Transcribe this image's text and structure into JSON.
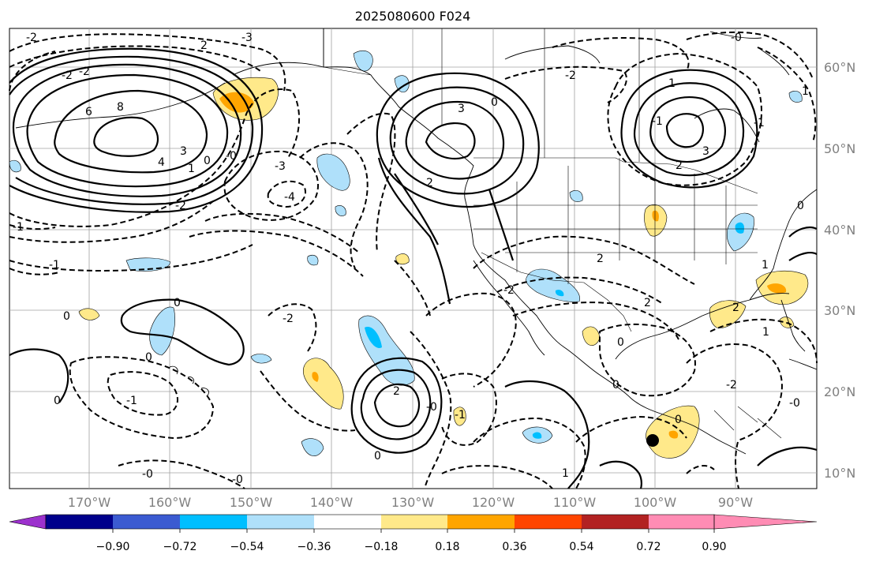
{
  "title": "2025080600 F024",
  "map": {
    "lat_labels": [
      "60°N",
      "50°N",
      "40°N",
      "30°N",
      "20°N",
      "10°N"
    ],
    "lon_labels": [
      "170°W",
      "160°W",
      "150°W",
      "140°W",
      "130°W",
      "120°W",
      "110°W",
      "100°W",
      "90°W"
    ]
  },
  "contour_labels": [
    "-2",
    "-3",
    "2",
    "-2",
    "-2",
    "-1",
    "-1",
    "0",
    "6",
    "8",
    "4",
    "3",
    "1",
    "0",
    "-0",
    "-3",
    "-4",
    "3",
    "0",
    "2",
    "-2",
    "-2",
    "1",
    "-1",
    "-1",
    "3",
    "2",
    "-0",
    "1",
    "2",
    "2",
    "-2",
    "0",
    "0",
    "0",
    "0",
    "-0",
    "-2",
    "-1",
    "-0",
    "-0",
    "0",
    "2",
    "-1",
    "0",
    "1",
    "-2",
    "0",
    "-0",
    "1",
    "2",
    "1",
    "0"
  ],
  "colorbar": {
    "colors": [
      "#9c31cd",
      "#00008b",
      "#3b5bd1",
      "#00bfff",
      "#afe0fa",
      "#ffffff",
      "#ffe98a",
      "#ffa500",
      "#ff4500",
      "#b22222",
      "#ff8cb4"
    ],
    "tick_labels": [
      "−0.90",
      "−0.72",
      "−0.54",
      "−0.36",
      "−0.18",
      "0.18",
      "0.36",
      "0.54",
      "0.72",
      "0.90"
    ]
  },
  "marker": {
    "lat": 13.5,
    "lon": -100.0,
    "color": "#000000"
  }
}
